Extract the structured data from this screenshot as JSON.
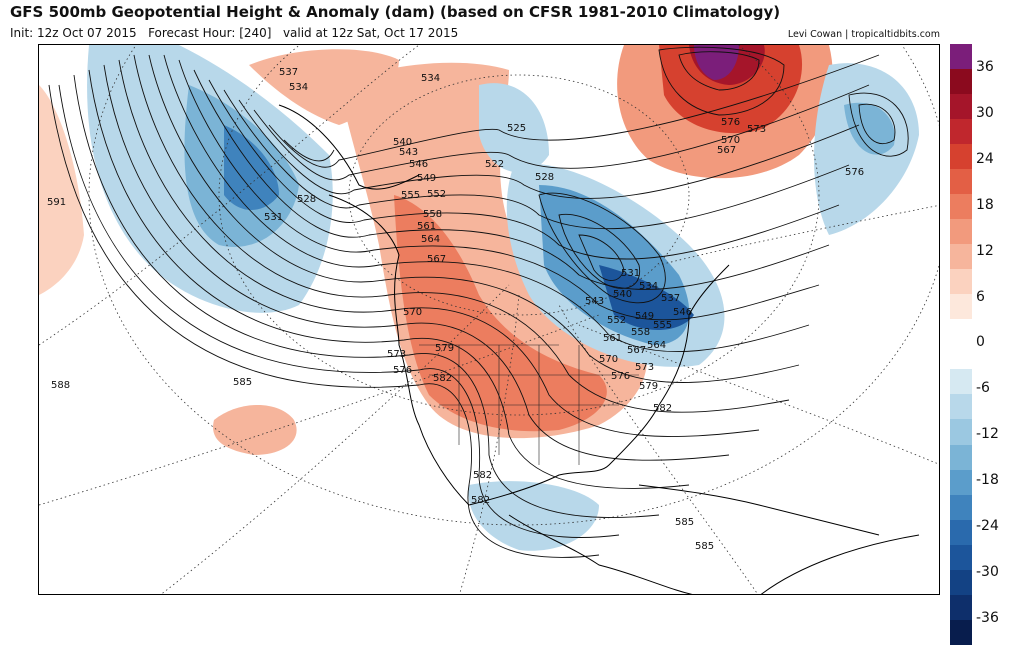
{
  "header": {
    "title": "GFS 500mb Geopotential Height & Anomaly (dam) (based on CFSR 1981-2010 Climatology)",
    "init": "Init: 12z Oct 07 2015",
    "forecast_hour": "Forecast Hour: [240]",
    "valid": "valid at 12z Sat, Oct 17 2015",
    "credit": "Levi Cowan | tropicaltidbits.com"
  },
  "colorbar": {
    "labels": [
      "36",
      "30",
      "24",
      "18",
      "12",
      "6",
      "0",
      "-6",
      "-12",
      "-18",
      "-24",
      "-30",
      "-36"
    ],
    "colors": [
      "#7b1e7a",
      "#8b0a1e",
      "#a5152a",
      "#c0272d",
      "#d6412f",
      "#e35f45",
      "#ec7d5f",
      "#f29a7d",
      "#f6b59c",
      "#fbd2bf",
      "#fde8dc",
      "#ffffff",
      "#ffffff",
      "#d6e9f2",
      "#b8d8ea",
      "#9bc8e1",
      "#7bb4d6",
      "#5b9dcb",
      "#3f83bd",
      "#2a6aad",
      "#1c559b",
      "#134284",
      "#0e2f6b",
      "#081d4d"
    ]
  },
  "map": {
    "contour_labels": [
      "537",
      "534",
      "531",
      "528",
      "591",
      "588",
      "585",
      "540",
      "543",
      "546",
      "549",
      "552",
      "555",
      "558",
      "561",
      "564",
      "567",
      "570",
      "573",
      "576",
      "579",
      "582",
      "522",
      "525",
      "534",
      "528",
      "576",
      "573",
      "570",
      "567",
      "576",
      "531",
      "534",
      "537",
      "540",
      "543",
      "546",
      "549",
      "552",
      "555",
      "558",
      "561",
      "564",
      "567",
      "570",
      "573",
      "576",
      "579",
      "582",
      "585",
      "585",
      "582",
      "582"
    ]
  }
}
